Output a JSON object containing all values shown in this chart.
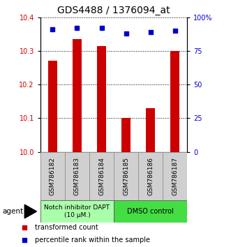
{
  "title": "GDS4488 / 1376094_at",
  "categories": [
    "GSM786182",
    "GSM786183",
    "GSM786184",
    "GSM786185",
    "GSM786186",
    "GSM786187"
  ],
  "bar_values": [
    10.27,
    10.335,
    10.315,
    10.1,
    10.13,
    10.3
  ],
  "bar_color": "#cc0000",
  "blue_dot_values": [
    91,
    92,
    92,
    88,
    89,
    90
  ],
  "dot_color": "#0000cc",
  "ylim_left": [
    10.0,
    10.4
  ],
  "ylim_right": [
    0,
    100
  ],
  "yticks_left": [
    10.0,
    10.1,
    10.2,
    10.3,
    10.4
  ],
  "yticks_right": [
    0,
    25,
    50,
    75,
    100
  ],
  "ytick_labels_right": [
    "0",
    "25",
    "50",
    "75",
    "100%"
  ],
  "group1_label": "Notch inhibitor DAPT\n(10 μM.)",
  "group2_label": "DMSO control",
  "group1_color": "#aaffaa",
  "group2_color": "#44dd44",
  "legend_items": [
    "transformed count",
    "percentile rank within the sample"
  ],
  "legend_colors": [
    "#cc0000",
    "#0000cc"
  ],
  "agent_label": "agent",
  "left_axis_color": "#cc0000",
  "right_axis_color": "#0000cc",
  "bar_width": 0.35,
  "tick_label_fontsize": 7,
  "title_fontsize": 10
}
